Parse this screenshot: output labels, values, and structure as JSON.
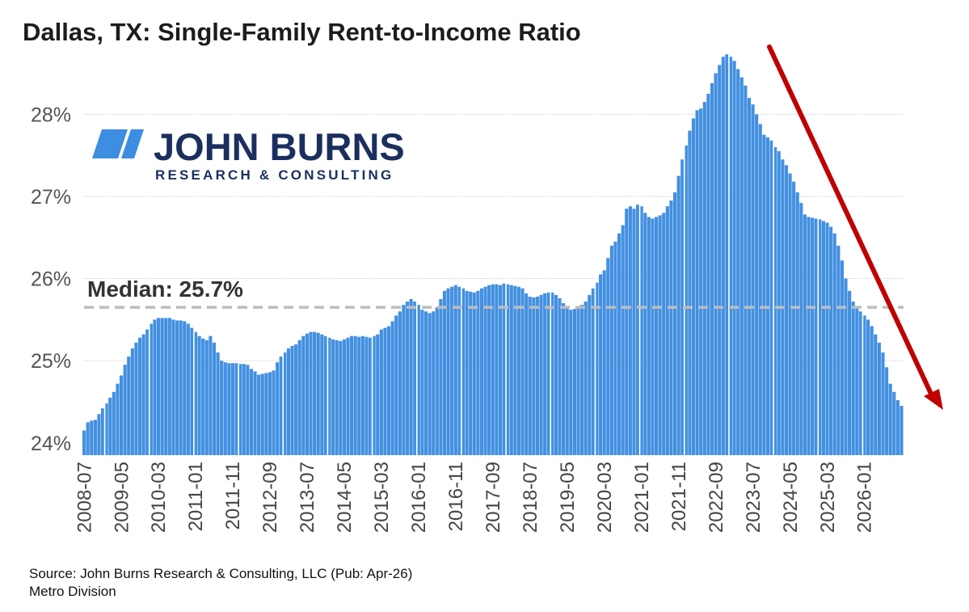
{
  "title": "Dallas, TX: Single-Family Rent-to-Income Ratio",
  "logo": {
    "name": "JOHN BURNS",
    "tagline": "RESEARCH & CONSULTING",
    "color": "#1b2f5e",
    "mark_color": "#3d8de0"
  },
  "footer": {
    "source": "Source: John Burns Research & Consulting, LLC (Pub: Apr-26)",
    "division": "Metro Division"
  },
  "chart_data": {
    "type": "bar",
    "frequency": "monthly",
    "start": "2008-07",
    "ylim": [
      23.85,
      28.85
    ],
    "y_ticks": [
      24,
      25,
      26,
      27,
      28
    ],
    "y_tick_labels": [
      "24%",
      "25%",
      "26%",
      "27%",
      "28%"
    ],
    "x_tick_labels": [
      "2008-07",
      "2009-05",
      "2010-03",
      "2011-01",
      "2011-11",
      "2012-09",
      "2013-07",
      "2014-05",
      "2015-03",
      "2016-01",
      "2016-11",
      "2017-09",
      "2018-07",
      "2019-05",
      "2020-03",
      "2021-01",
      "2021-11",
      "2022-09",
      "2023-07",
      "2024-05",
      "2025-03",
      "2026-01"
    ],
    "bar_color": "#4390e0",
    "grid": "horizontal",
    "values": [
      24.15,
      24.25,
      24.27,
      24.28,
      24.35,
      24.42,
      24.48,
      24.55,
      24.62,
      24.72,
      24.82,
      24.95,
      25.05,
      25.15,
      25.22,
      25.28,
      25.32,
      25.38,
      25.45,
      25.5,
      25.52,
      25.52,
      25.52,
      25.52,
      25.5,
      25.49,
      25.49,
      25.48,
      25.45,
      25.4,
      25.35,
      25.3,
      25.27,
      25.25,
      25.3,
      25.22,
      25.1,
      25.0,
      24.98,
      24.97,
      24.97,
      24.97,
      24.96,
      24.96,
      24.95,
      24.9,
      24.87,
      24.83,
      24.84,
      24.85,
      24.86,
      24.88,
      24.98,
      25.05,
      25.1,
      25.15,
      25.18,
      25.2,
      25.25,
      25.3,
      25.33,
      25.35,
      25.35,
      25.34,
      25.32,
      25.3,
      25.28,
      25.26,
      25.25,
      25.24,
      25.26,
      25.28,
      25.3,
      25.3,
      25.29,
      25.3,
      25.29,
      25.28,
      25.3,
      25.32,
      25.38,
      25.4,
      25.42,
      25.48,
      25.55,
      25.6,
      25.68,
      25.72,
      25.75,
      25.72,
      25.68,
      25.62,
      25.6,
      25.58,
      25.6,
      25.65,
      25.75,
      25.85,
      25.88,
      25.9,
      25.92,
      25.9,
      25.88,
      25.85,
      25.84,
      25.83,
      25.85,
      25.88,
      25.9,
      25.92,
      25.93,
      25.93,
      25.92,
      25.94,
      25.93,
      25.92,
      25.91,
      25.9,
      25.88,
      25.82,
      25.78,
      25.77,
      25.78,
      25.8,
      25.82,
      25.83,
      25.83,
      25.8,
      25.76,
      25.7,
      25.65,
      25.62,
      25.63,
      25.65,
      25.68,
      25.72,
      25.8,
      25.88,
      25.95,
      26.05,
      26.1,
      26.25,
      26.4,
      26.45,
      26.55,
      26.65,
      26.85,
      26.88,
      26.85,
      26.9,
      26.88,
      26.8,
      26.75,
      26.73,
      26.75,
      26.77,
      26.8,
      26.88,
      26.95,
      27.05,
      27.25,
      27.45,
      27.62,
      27.8,
      27.95,
      28.05,
      28.07,
      28.15,
      28.25,
      28.38,
      28.5,
      28.6,
      28.7,
      28.73,
      28.7,
      28.65,
      28.55,
      28.45,
      28.35,
      28.2,
      28.12,
      28.0,
      27.88,
      27.75,
      27.72,
      27.68,
      27.6,
      27.55,
      27.45,
      27.38,
      27.28,
      27.18,
      27.05,
      26.92,
      26.78,
      26.75,
      26.74,
      26.73,
      26.72,
      26.7,
      26.68,
      26.63,
      26.55,
      26.4,
      26.22,
      26.0,
      25.85,
      25.72,
      25.65,
      25.6,
      25.55,
      25.5,
      25.42,
      25.32,
      25.22,
      25.1,
      24.92,
      24.72,
      24.62,
      24.52,
      24.45
    ],
    "reference_line": {
      "value": 25.65,
      "label": "Median: 25.7%",
      "color": "#bdbdbd",
      "style": "dashed"
    },
    "annotations": [
      {
        "type": "arrow",
        "direction": "down",
        "color": "#c00000"
      }
    ]
  }
}
